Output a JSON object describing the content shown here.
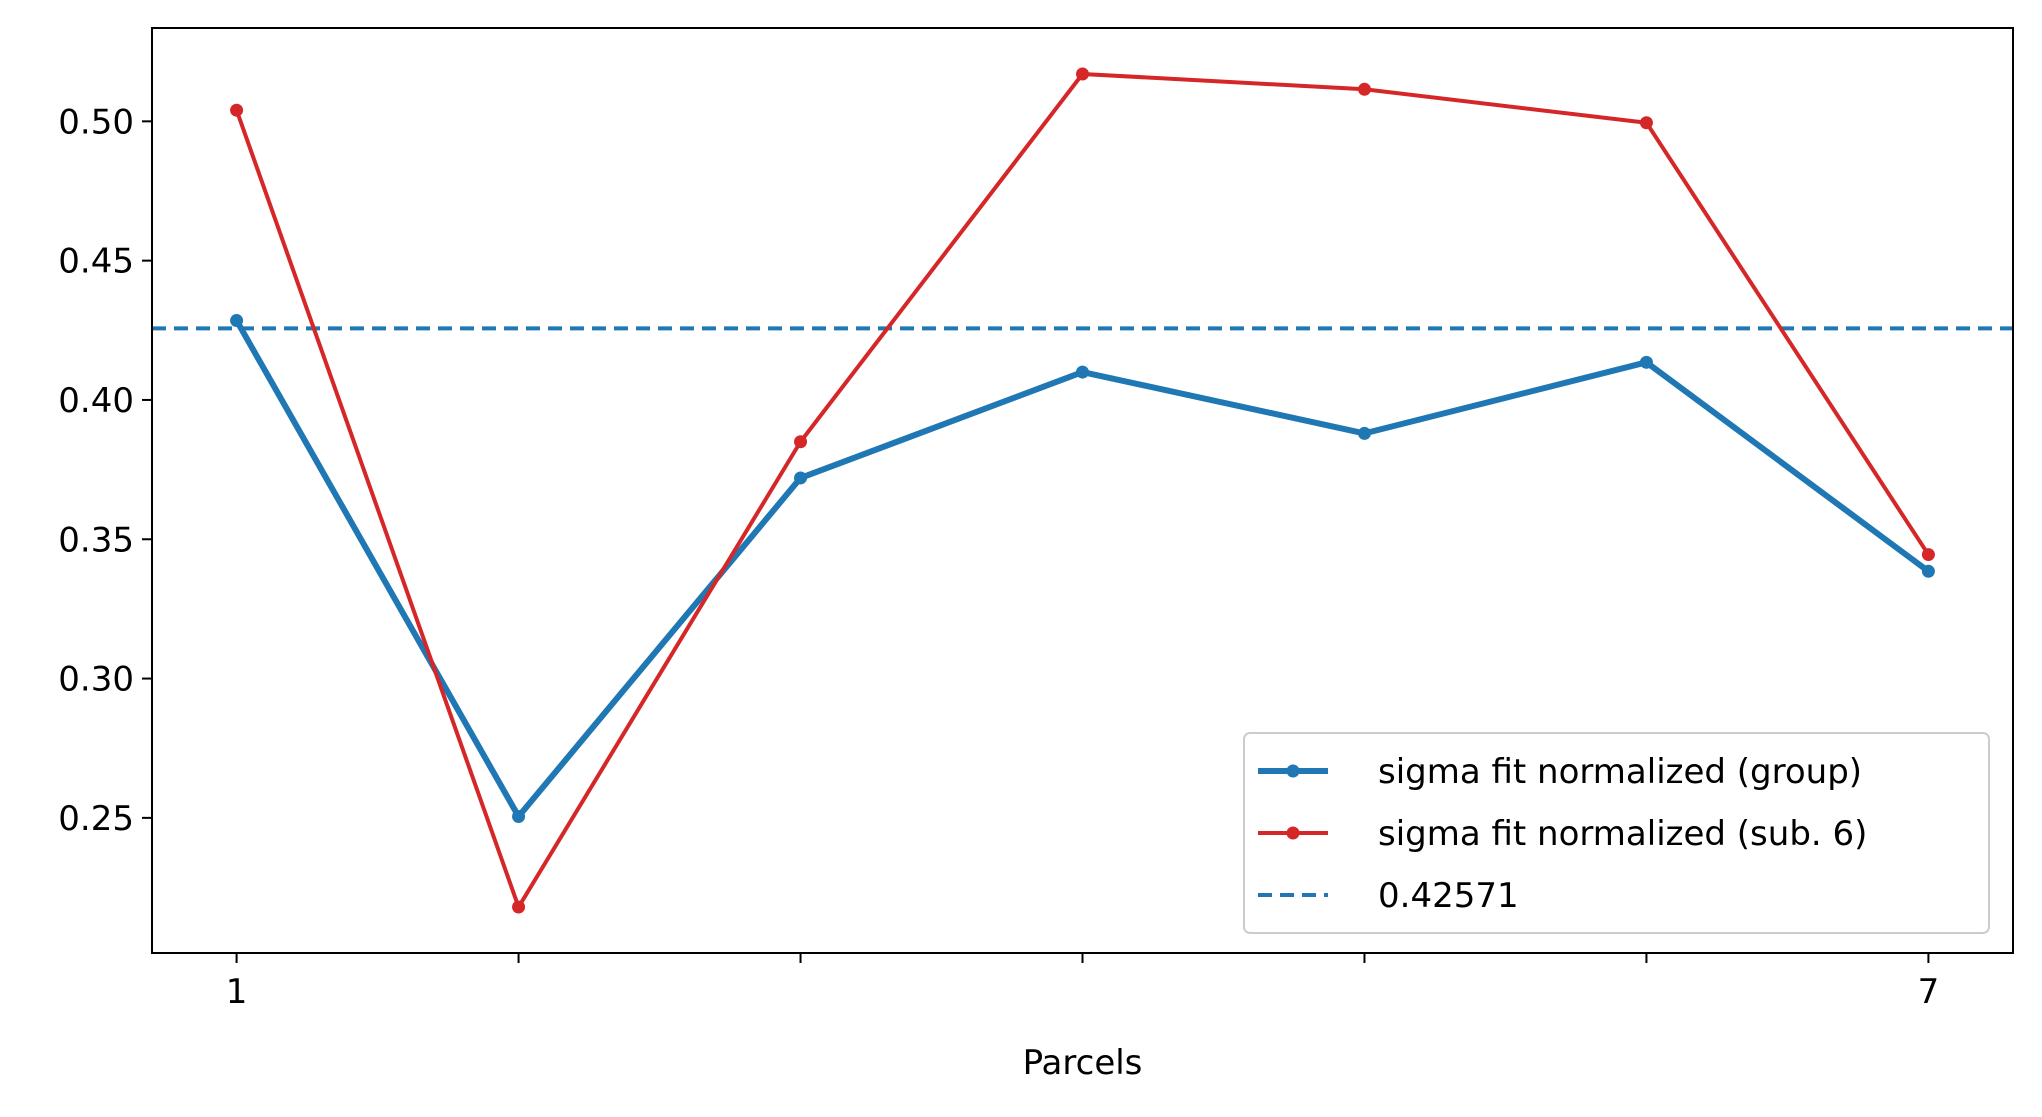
{
  "chart_data": {
    "type": "line",
    "title": "",
    "xlabel": "Parcels",
    "ylabel": "",
    "x": [
      1,
      2,
      3,
      4,
      5,
      6,
      7
    ],
    "x_ticks_major": [
      1,
      7
    ],
    "x_tick_labels": [
      "1",
      "7"
    ],
    "x_ticks_minor": [
      2,
      3,
      4,
      5,
      6
    ],
    "xlim": [
      0.7,
      7.3
    ],
    "ylim": [
      0.2015,
      0.5335
    ],
    "y_ticks": [
      0.25,
      0.3,
      0.35,
      0.4,
      0.45,
      0.5
    ],
    "y_tick_labels": [
      "0.25",
      "0.30",
      "0.35",
      "0.40",
      "0.45",
      "0.50"
    ],
    "series": [
      {
        "name": "sigma fit normalized (group)",
        "color": "#1f77b4",
        "style": "solid",
        "marker": "dot",
        "values": [
          0.4285,
          0.2505,
          0.372,
          0.41,
          0.388,
          0.4135,
          0.3385
        ]
      },
      {
        "name": "sigma fit normalized (sub. 6)",
        "color": "#d62728",
        "style": "solid",
        "marker": "dot",
        "values": [
          0.504,
          0.218,
          0.385,
          0.517,
          0.5115,
          0.4995,
          0.3445
        ]
      }
    ],
    "hlines": [
      {
        "name": "0.42571",
        "y": 0.42571,
        "color": "#1f77b4",
        "style": "dashed"
      }
    ],
    "grid": false,
    "legend_position": "lower right"
  }
}
